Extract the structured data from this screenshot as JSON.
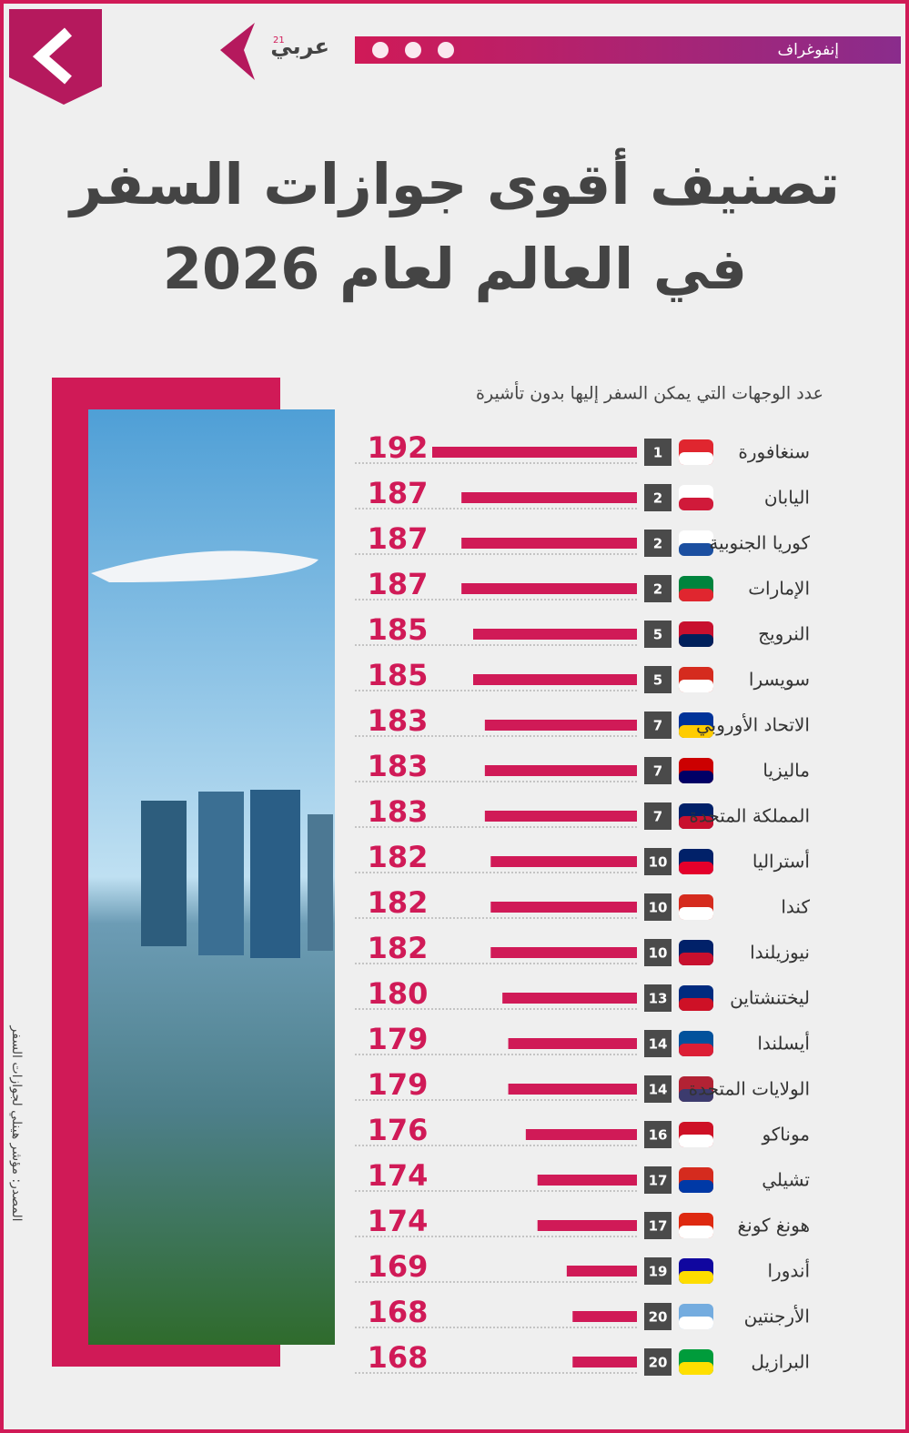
{
  "header": {
    "section": "إنفوغراف",
    "logo": "عربي",
    "logo_sup": "21"
  },
  "source": "المصدر: مؤشر هينلي لجوازات السفر",
  "chart_data": {
    "type": "bar",
    "title_lines": [
      "تصنيف أقوى جوازات السفر",
      "في العالم لعام 2026"
    ],
    "axis_label": "عدد الوجهات التي يمكن السفر إليها بدون تأشيرة",
    "categories": [
      "سنغافورة",
      "اليابان",
      "كوريا الجنوبية",
      "الإمارات",
      "النرويج",
      "سويسرا",
      "الاتحاد الأوروبي",
      "ماليزيا",
      "المملكة المتحدة",
      "أستراليا",
      "كندا",
      "نيوزيلندا",
      "ليختنشتاين",
      "أيسلندا",
      "الولايات المتحدة",
      "موناكو",
      "تشيلي",
      "هونغ كونغ",
      "أندورا",
      "الأرجنتين",
      "البرازيل"
    ],
    "ranks": [
      1,
      2,
      2,
      2,
      5,
      5,
      7,
      7,
      7,
      10,
      10,
      10,
      13,
      14,
      14,
      16,
      17,
      17,
      19,
      20,
      20
    ],
    "values": [
      192,
      187,
      187,
      187,
      185,
      185,
      183,
      183,
      183,
      182,
      182,
      182,
      180,
      179,
      179,
      176,
      174,
      174,
      169,
      168,
      168
    ],
    "color": "#d01a57",
    "xlim": [
      157,
      192
    ]
  }
}
